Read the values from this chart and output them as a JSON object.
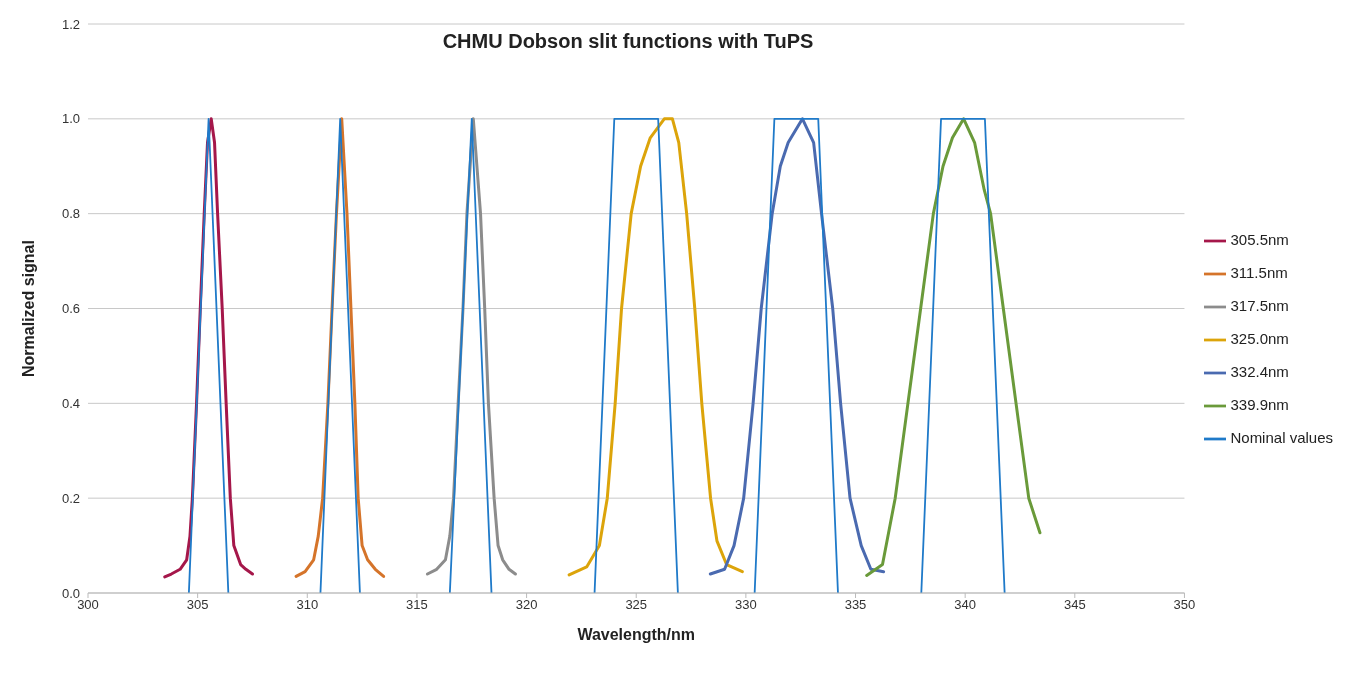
{
  "chart_data": {
    "type": "line",
    "title": "CHMU Dobson slit functions with TuPS",
    "xlabel": "Wavelength/nm",
    "ylabel": "Normalized signal",
    "xlim": [
      300,
      350
    ],
    "xticks": [
      300,
      305,
      310,
      315,
      320,
      325,
      330,
      335,
      340,
      345,
      350
    ],
    "ylim": [
      0,
      1.2
    ],
    "yticks": [
      {
        "value": 0,
        "label": "0.0"
      },
      {
        "value": 0.2,
        "label": "0.2"
      },
      {
        "value": 0.4,
        "label": "0.4"
      },
      {
        "value": 0.6,
        "label": "0.6"
      },
      {
        "value": 0.8,
        "label": "0.8"
      },
      {
        "value": 1,
        "label": "1.0"
      },
      {
        "value": 1.2,
        "label": "1.2"
      }
    ],
    "grid": "y",
    "legend": "right",
    "marker": "none",
    "line_style": "solid",
    "series": [
      {
        "name": "305.5nm",
        "color": "#a5174a",
        "x": [
          303.5,
          303.8,
          304.2,
          304.5,
          304.65,
          304.76,
          304.95,
          305.12,
          305.3,
          305.45,
          305.62,
          305.77,
          305.91,
          306.12,
          306.3,
          306.49,
          306.65,
          306.96,
          307.2,
          307.5
        ],
        "values": [
          0.034,
          0.04,
          0.05,
          0.07,
          0.12,
          0.2,
          0.4,
          0.6,
          0.8,
          0.95,
          1.0,
          0.95,
          0.8,
          0.6,
          0.4,
          0.2,
          0.1,
          0.06,
          0.05,
          0.04
        ]
      },
      {
        "name": "311.5nm",
        "color": "#d5742a",
        "x": [
          309.49,
          309.9,
          310.29,
          310.5,
          310.7,
          310.94,
          311.13,
          311.33,
          311.57,
          311.81,
          311.99,
          312.17,
          312.32,
          312.5,
          312.75,
          313.1,
          313.48
        ],
        "values": [
          0.035,
          0.045,
          0.07,
          0.12,
          0.2,
          0.4,
          0.6,
          0.8,
          1.0,
          0.8,
          0.6,
          0.4,
          0.2,
          0.1,
          0.07,
          0.05,
          0.035
        ]
      },
      {
        "name": "317.5nm",
        "color": "#8c8c8c",
        "x": [
          315.48,
          315.9,
          316.3,
          316.5,
          316.67,
          316.88,
          317.1,
          317.28,
          317.57,
          317.9,
          318.09,
          318.26,
          318.52,
          318.7,
          318.91,
          319.2,
          319.49
        ],
        "values": [
          0.04,
          0.05,
          0.07,
          0.12,
          0.2,
          0.4,
          0.6,
          0.8,
          1.0,
          0.8,
          0.6,
          0.4,
          0.2,
          0.1,
          0.07,
          0.05,
          0.04
        ]
      },
      {
        "name": "325.0nm",
        "color": "#dca40a",
        "x": [
          321.94,
          322.74,
          323.32,
          323.68,
          324.04,
          324.33,
          324.77,
          325.2,
          325.64,
          326.28,
          326.65,
          326.94,
          327.3,
          327.67,
          327.99,
          328.39,
          328.68,
          329.12,
          329.84
        ],
        "values": [
          0.038,
          0.055,
          0.1,
          0.2,
          0.4,
          0.6,
          0.8,
          0.9,
          0.96,
          1.0,
          1.0,
          0.95,
          0.8,
          0.6,
          0.4,
          0.2,
          0.11,
          0.06,
          0.045
        ]
      },
      {
        "name": "332.4nm",
        "color": "#4a6ab0",
        "x": [
          328.38,
          329.03,
          329.46,
          329.9,
          330.33,
          330.7,
          331.2,
          331.57,
          331.93,
          332.58,
          333.09,
          333.45,
          333.96,
          334.32,
          334.75,
          335.26,
          335.7,
          336.28
        ],
        "values": [
          0.04,
          0.05,
          0.1,
          0.2,
          0.4,
          0.6,
          0.8,
          0.9,
          0.95,
          1.0,
          0.95,
          0.8,
          0.6,
          0.4,
          0.2,
          0.1,
          0.05,
          0.045
        ]
      },
      {
        "name": "339.9nm",
        "color": "#6a9a3a",
        "x": [
          335.51,
          336.23,
          336.81,
          337.39,
          337.97,
          338.55,
          338.99,
          339.42,
          339.93,
          340.43,
          340.87,
          341.16,
          341.74,
          342.32,
          342.9,
          343.41
        ],
        "values": [
          0.037,
          0.06,
          0.2,
          0.4,
          0.6,
          0.8,
          0.9,
          0.96,
          1.0,
          0.95,
          0.85,
          0.8,
          0.6,
          0.4,
          0.2,
          0.127
        ]
      },
      {
        "name": "Nominal values",
        "color": "#1f7ac9",
        "x": [
          304.6,
          305.5,
          306.4,
          306.5,
          310.6,
          311.5,
          312.4,
          312.5,
          316.5,
          317.5,
          318.4,
          318.5,
          323.1,
          324.0,
          326.0,
          326.9,
          327.0,
          330.4,
          331.3,
          333.3,
          334.2,
          334.3,
          338.0,
          338.9,
          340.9,
          341.8
        ],
        "values": [
          0,
          1,
          0,
          null,
          0,
          1,
          0,
          null,
          0,
          1,
          0,
          null,
          0,
          1,
          1,
          0,
          null,
          0,
          1,
          1,
          0,
          null,
          0,
          1,
          1,
          0
        ]
      }
    ]
  }
}
